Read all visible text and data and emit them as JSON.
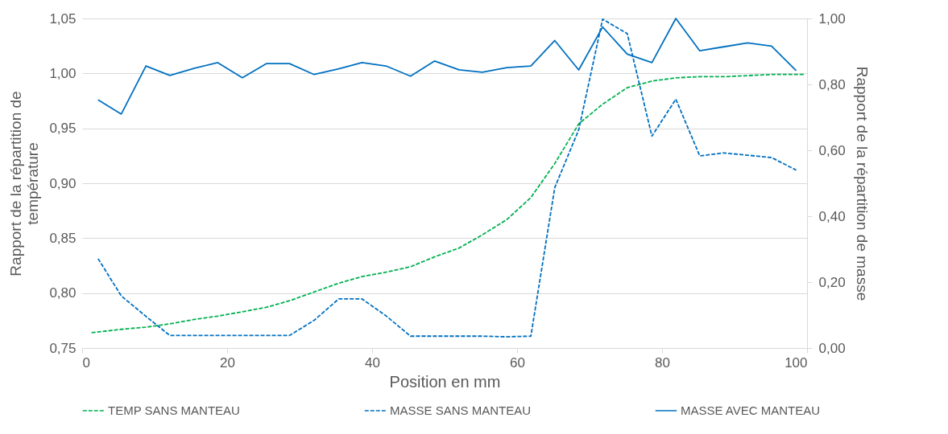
{
  "chart_data": {
    "type": "line",
    "xlabel": "Position en mm",
    "ylabel": "Rapport de la répartition de température",
    "y2label": "Rapport de la répartition de masse",
    "xlim": [
      0,
      100
    ],
    "xticks": [
      0,
      20,
      40,
      60,
      80,
      100
    ],
    "ylim": [
      0.75,
      1.05
    ],
    "yticks": [
      {
        "value": 0.75,
        "label": "0,75"
      },
      {
        "value": 0.8,
        "label": "0,80"
      },
      {
        "value": 0.85,
        "label": "0,85"
      },
      {
        "value": 0.9,
        "label": "0,90"
      },
      {
        "value": 0.95,
        "label": "0,95"
      },
      {
        "value": 1.0,
        "label": "1,00"
      },
      {
        "value": 1.05,
        "label": "1,05"
      }
    ],
    "y2lim": [
      0,
      1
    ],
    "y2ticks": [
      {
        "value": 0,
        "label": "0,00"
      },
      {
        "value": 0.2,
        "label": "0,20"
      },
      {
        "value": 0.4,
        "label": "0,40"
      },
      {
        "value": 0.6,
        "label": "0,60"
      },
      {
        "value": 0.8,
        "label": "0,80"
      },
      {
        "value": 1.0,
        "label": "1,00"
      }
    ],
    "grid": "y",
    "legend": "bottom",
    "marker": "none",
    "series": [
      {
        "name": "TEMP SANS MANTEAU",
        "color": "#00b050",
        "line_style": "dashed",
        "x": [
          1.3,
          5.4,
          8.8,
          12.1,
          15.5,
          18.7,
          22.1,
          25.4,
          28.6,
          32.0,
          35.4,
          38.6,
          41.9,
          45.3,
          48.6,
          52.0,
          55.2,
          58.6,
          61.9,
          65.2,
          68.5,
          71.8,
          75.2,
          78.6,
          81.9,
          85.2,
          88.5,
          91.8,
          95.1,
          99.7
        ],
        "values": [
          0.764,
          0.767,
          0.769,
          0.772,
          0.776,
          0.779,
          0.783,
          0.787,
          0.793,
          0.801,
          0.809,
          0.815,
          0.819,
          0.824,
          0.833,
          0.841,
          0.853,
          0.867,
          0.887,
          0.918,
          0.954,
          0.972,
          0.987,
          0.993,
          0.996,
          0.997,
          0.997,
          0.998,
          0.999,
          0.999
        ]
      },
      {
        "name": "MASSE SANS MANTEAU",
        "color": "#0070c0",
        "line_style": "dashed",
        "axis": "y2",
        "x": [
          2.2,
          5.4,
          8.8,
          12.1,
          15.5,
          18.7,
          22.1,
          25.4,
          28.6,
          32.0,
          35.4,
          38.6,
          41.9,
          45.3,
          48.6,
          52.0,
          55.2,
          58.6,
          61.9,
          65.2,
          68.5,
          71.8,
          75.2,
          78.6,
          81.9,
          85.2,
          88.5,
          91.8,
          95.1,
          98.5
        ],
        "values": [
          0.271,
          0.158,
          0.096,
          0.038,
          0.038,
          0.038,
          0.038,
          0.038,
          0.038,
          0.084,
          0.149,
          0.149,
          0.098,
          0.036,
          0.036,
          0.036,
          0.036,
          0.034,
          0.036,
          0.487,
          0.662,
          0.998,
          0.954,
          0.643,
          0.755,
          0.583,
          0.592,
          0.585,
          0.578,
          0.54
        ]
      },
      {
        "name": "MASSE AVEC MANTEAU",
        "color": "#0070c0",
        "line_style": "solid",
        "axis": "y2",
        "x": [
          2.2,
          5.4,
          8.8,
          12.1,
          15.5,
          18.7,
          22.1,
          25.4,
          28.6,
          32.0,
          35.4,
          38.6,
          41.9,
          45.3,
          48.6,
          52.0,
          55.2,
          58.6,
          61.9,
          65.2,
          68.5,
          71.8,
          75.2,
          78.6,
          81.9,
          85.2,
          88.5,
          91.8,
          95.1,
          98.5
        ],
        "values": [
          0.753,
          0.71,
          0.856,
          0.827,
          0.849,
          0.866,
          0.82,
          0.863,
          0.863,
          0.83,
          0.847,
          0.866,
          0.856,
          0.825,
          0.871,
          0.844,
          0.837,
          0.851,
          0.856,
          0.933,
          0.844,
          0.974,
          0.892,
          0.866,
          1.0,
          0.902,
          0.914,
          0.926,
          0.916,
          0.842
        ]
      }
    ]
  }
}
